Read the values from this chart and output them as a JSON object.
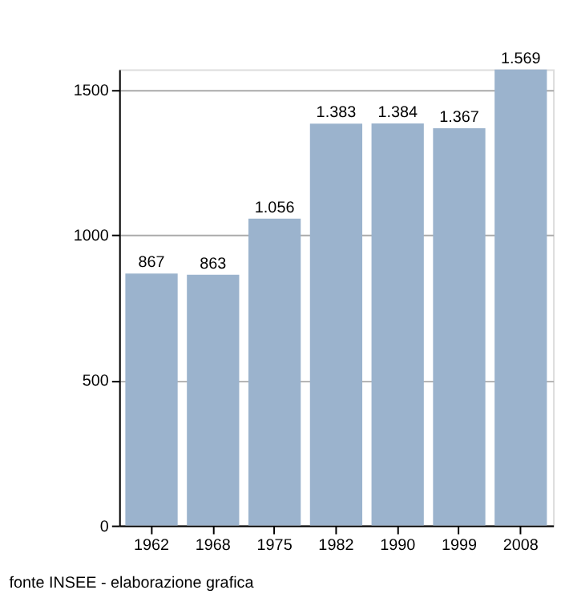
{
  "chart_data": {
    "type": "bar",
    "categories": [
      "1962",
      "1968",
      "1975",
      "1982",
      "1990",
      "1999",
      "2008"
    ],
    "values": [
      867,
      863,
      1056,
      1383,
      1384,
      1367,
      1569
    ],
    "value_labels": [
      "867",
      "863",
      "1.056",
      "1.383",
      "1.384",
      "1.367",
      "1.569"
    ],
    "color": "#9bb3cd",
    "ylim": [
      0,
      1570
    ],
    "yticks": [
      0,
      500,
      1000,
      1500
    ],
    "grid": "y",
    "annotations": [
      "fonte INSEE - elaborazione grafica"
    ]
  }
}
